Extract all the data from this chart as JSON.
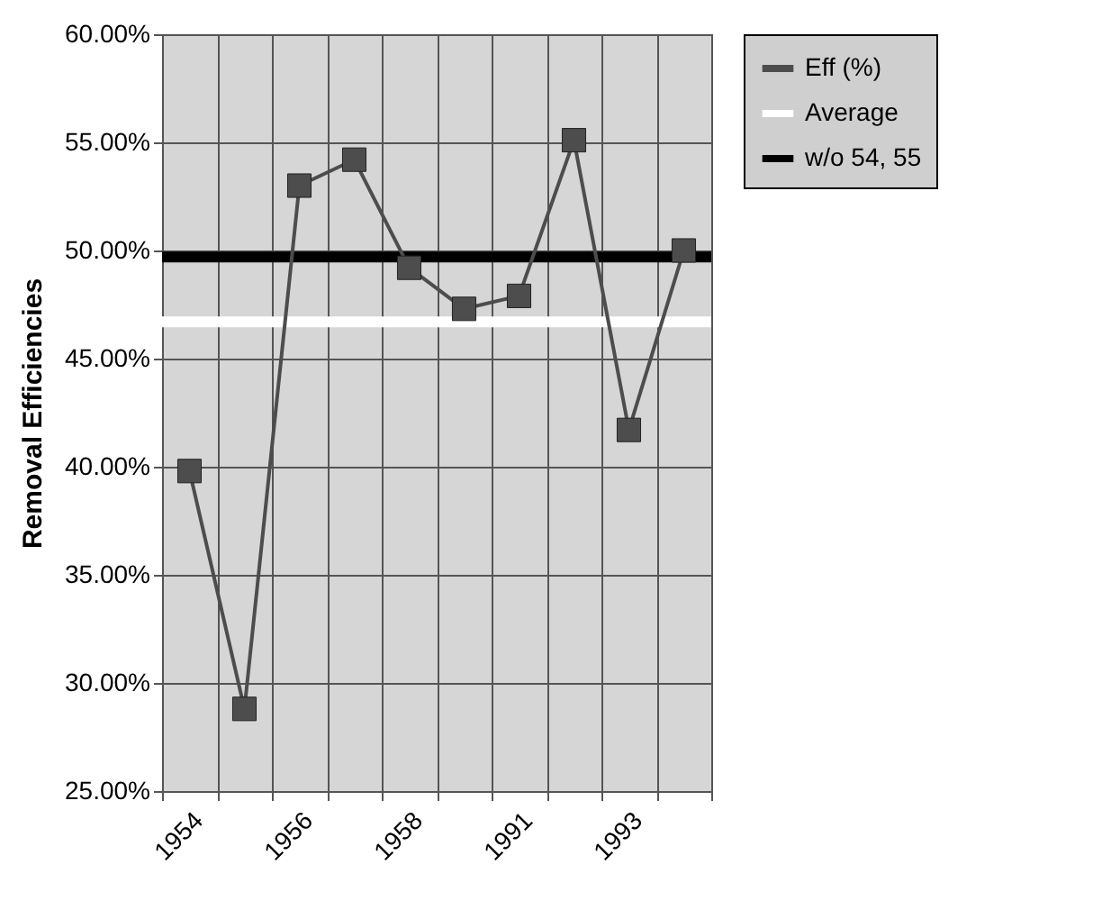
{
  "chart_data": {
    "type": "line",
    "ylabel": "Removal Efficiencies",
    "categories": [
      "1954",
      null,
      "1956",
      null,
      "1958",
      null,
      "1991",
      null,
      "1993",
      null
    ],
    "series": [
      {
        "name": "Eff (%)",
        "color": "#4d4d4d",
        "values": [
          39.8,
          28.8,
          53.0,
          54.2,
          49.2,
          47.3,
          47.9,
          55.1,
          41.7,
          50.0
        ]
      }
    ],
    "ylim": [
      25,
      60
    ],
    "yticks": [
      {
        "value": 25,
        "label": "25.00%"
      },
      {
        "value": 30,
        "label": "30.00%"
      },
      {
        "value": 35,
        "label": "35.00%"
      },
      {
        "value": 40,
        "label": "40.00%"
      },
      {
        "value": 45,
        "label": "45.00%"
      },
      {
        "value": 50,
        "label": "50.00%"
      },
      {
        "value": 55,
        "label": "55.00%"
      },
      {
        "value": 60,
        "label": "60.00%"
      }
    ],
    "ref_lines": [
      {
        "axis": "y",
        "value": 46.7,
        "label": "Average",
        "color": "#ffffff"
      },
      {
        "axis": "y",
        "value": 49.7,
        "label": "w/o 54, 55",
        "color": "#000000"
      }
    ],
    "grid": true,
    "legend": "right",
    "marker": "square",
    "line_style": "solid"
  }
}
